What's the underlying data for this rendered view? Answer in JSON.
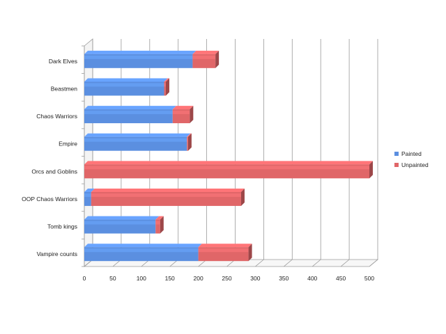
{
  "chart_data": {
    "type": "bar",
    "orientation": "horizontal",
    "stacked": true,
    "style": "3d",
    "categories": [
      "Dark Elves",
      "Beastmen",
      "Chaos Warriors",
      "Empire",
      "Orcs and Goblins",
      "OOP Chaos Warriors",
      "Tomb kings",
      "Vampire counts"
    ],
    "series": [
      {
        "name": "Painted",
        "color": "#5b8fe0",
        "values": [
          190,
          140,
          155,
          180,
          0,
          12,
          125,
          200
        ]
      },
      {
        "name": "Unpainted",
        "color": "#e06668",
        "values": [
          40,
          3,
          30,
          2,
          500,
          263,
          8,
          88
        ]
      }
    ],
    "xlim": [
      0,
      500
    ],
    "xticks": [
      "0",
      "50",
      "100",
      "150",
      "200",
      "250",
      "300",
      "350",
      "400",
      "450",
      "500"
    ],
    "grid": true,
    "legend_position": "right"
  }
}
